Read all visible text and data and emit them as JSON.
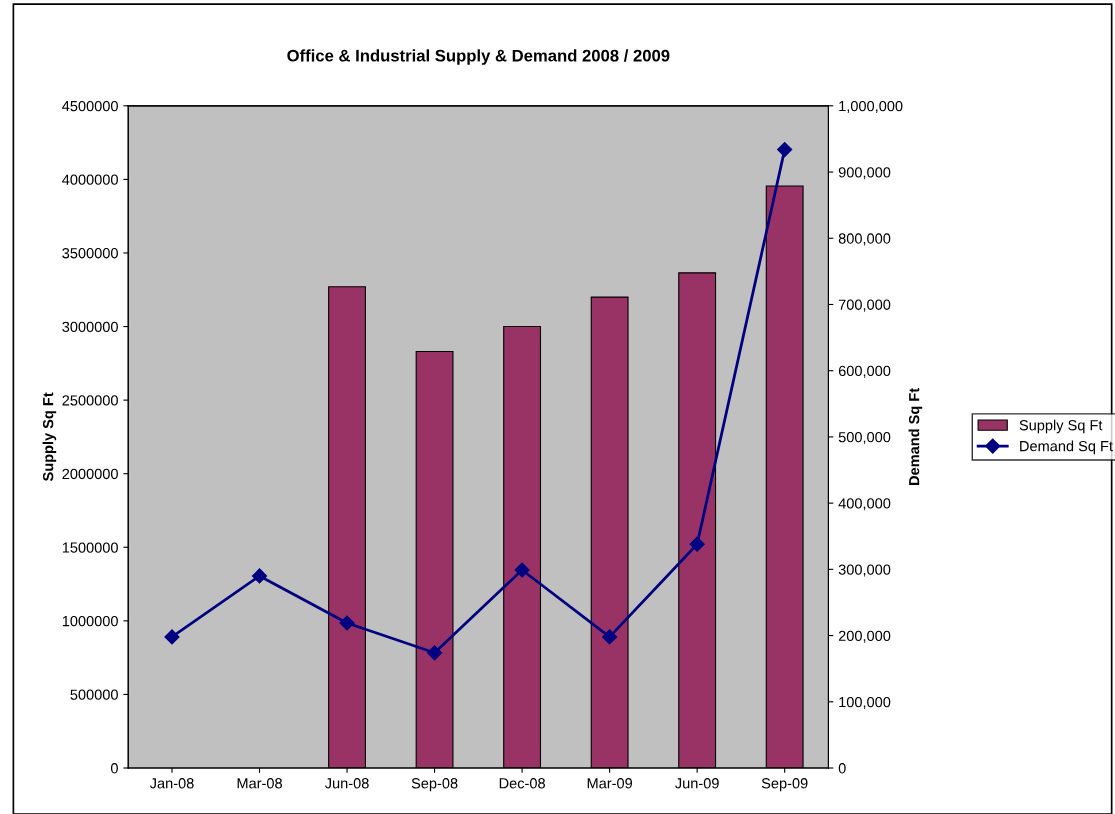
{
  "chart_data": {
    "type": "bar",
    "title": "Office & Industrial Supply & Demand 2008 / 2009",
    "ylabel": "Supply Sq Ft",
    "y2label": "Demand Sq Ft",
    "categories": [
      "Jan-08",
      "Mar-08",
      "Jun-08",
      "Sep-08",
      "Dec-08",
      "Mar-09",
      "Jun-09",
      "Sep-09"
    ],
    "series": [
      {
        "name": "Supply Sq Ft",
        "color": "#993366",
        "values": [
          null,
          null,
          3270000,
          2830000,
          3000000,
          3200000,
          3365000,
          3955000
        ]
      },
      {
        "name": "Demand Sq Ft",
        "type": "line",
        "axis": "y2",
        "color": "#000080",
        "values": [
          198000,
          290000,
          219000,
          174000,
          299000,
          198000,
          338000,
          934000
        ]
      }
    ],
    "ylim": [
      0,
      4500000
    ],
    "yticks": [
      0,
      500000,
      1000000,
      1500000,
      2000000,
      2500000,
      3000000,
      3500000,
      4000000,
      4500000
    ],
    "y2lim": [
      0,
      1000000
    ],
    "y2ticks": [
      {
        "value": 0,
        "label": "0"
      },
      {
        "value": 100000,
        "label": "100,000"
      },
      {
        "value": 200000,
        "label": "200,000"
      },
      {
        "value": 300000,
        "label": "300,000"
      },
      {
        "value": 400000,
        "label": "400,000"
      },
      {
        "value": 500000,
        "label": "500,000"
      },
      {
        "value": 600000,
        "label": "600,000"
      },
      {
        "value": 700000,
        "label": "700,000"
      },
      {
        "value": 800000,
        "label": "800,000"
      },
      {
        "value": 900000,
        "label": "900,000"
      },
      {
        "value": 1000000,
        "label": "1,000,000"
      }
    ],
    "marker": "diamond",
    "line_style": "solid",
    "legend": "right",
    "grid": false
  }
}
